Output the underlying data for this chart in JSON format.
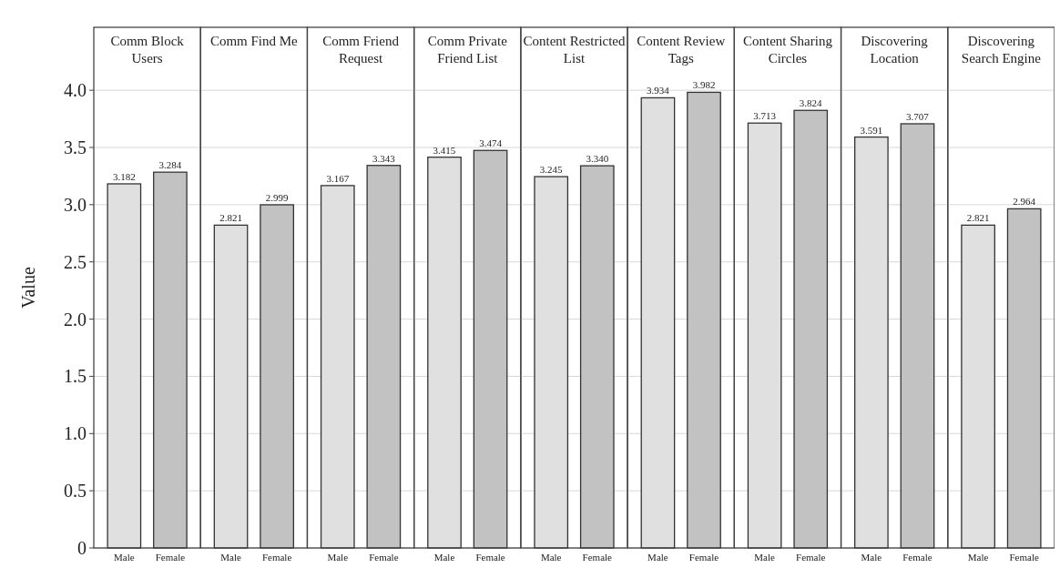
{
  "chart_data": [
    {
      "type": "bar",
      "title": "Comm Block Users",
      "ylabel": "Value",
      "categories": [
        "Male",
        "Female"
      ],
      "values": [
        3.182,
        3.284
      ],
      "value_labels": [
        "3.182",
        "3.284"
      ],
      "colors": [
        "#e0e0e0",
        "#c2c2c2"
      ],
      "ylim": [
        0,
        4.55
      ],
      "yticks": [
        0,
        {
          "value": 0.5,
          "label": "0.5"
        },
        {
          "value": 1,
          "label": "1.0"
        },
        {
          "value": 1.5,
          "label": "1.5"
        },
        {
          "value": 2,
          "label": "2.0"
        },
        {
          "value": 2.5,
          "label": "2.5"
        },
        {
          "value": 3,
          "label": "3.0"
        },
        {
          "value": 3.5,
          "label": "3.5"
        },
        {
          "value": 4,
          "label": "4.0"
        }
      ],
      "grid": "y"
    },
    {
      "type": "bar",
      "title": "Comm Find Me",
      "categories": [
        "Male",
        "Female"
      ],
      "values": [
        2.821,
        2.999
      ],
      "value_labels": [
        "2.821",
        "2.999"
      ],
      "colors": [
        "#e0e0e0",
        "#c2c2c2"
      ],
      "ylim": [
        0,
        4.55
      ],
      "yticks": [
        0,
        0.5,
        1,
        1.5,
        2,
        2.5,
        3,
        3.5,
        4
      ],
      "grid": "y",
      "tick_labels": "x"
    },
    {
      "type": "bar",
      "title": "Comm Friend Request",
      "categories": [
        "Male",
        "Female"
      ],
      "values": [
        3.167,
        3.343
      ],
      "value_labels": [
        "3.167",
        "3.343"
      ],
      "colors": [
        "#e0e0e0",
        "#c2c2c2"
      ],
      "ylim": [
        0,
        4.55
      ],
      "yticks": [
        0,
        0.5,
        1,
        1.5,
        2,
        2.5,
        3,
        3.5,
        4
      ],
      "grid": "y",
      "tick_labels": "x"
    },
    {
      "type": "bar",
      "title": "Comm Private Friend List",
      "categories": [
        "Male",
        "Female"
      ],
      "values": [
        3.415,
        3.474
      ],
      "value_labels": [
        "3.415",
        "3.474"
      ],
      "colors": [
        "#e0e0e0",
        "#c2c2c2"
      ],
      "ylim": [
        0,
        4.55
      ],
      "yticks": [
        0,
        0.5,
        1,
        1.5,
        2,
        2.5,
        3,
        3.5,
        4
      ],
      "grid": "y",
      "tick_labels": "x"
    },
    {
      "type": "bar",
      "title": "Content Restricted List",
      "categories": [
        "Male",
        "Female"
      ],
      "values": [
        3.245,
        3.34
      ],
      "value_labels": [
        "3.245",
        "3.340"
      ],
      "colors": [
        "#e0e0e0",
        "#c2c2c2"
      ],
      "ylim": [
        0,
        4.55
      ],
      "yticks": [
        0,
        0.5,
        1,
        1.5,
        2,
        2.5,
        3,
        3.5,
        4
      ],
      "grid": "y",
      "tick_labels": "x"
    },
    {
      "type": "bar",
      "title": "Content Review Tags",
      "categories": [
        "Male",
        "Female"
      ],
      "values": [
        3.934,
        3.982
      ],
      "value_labels": [
        "3.934",
        "3.982"
      ],
      "colors": [
        "#e0e0e0",
        "#c2c2c2"
      ],
      "ylim": [
        0,
        4.55
      ],
      "yticks": [
        0,
        0.5,
        1,
        1.5,
        2,
        2.5,
        3,
        3.5,
        4
      ],
      "grid": "y",
      "tick_labels": "x"
    },
    {
      "type": "bar",
      "title": "Content Sharing Circles",
      "categories": [
        "Male",
        "Female"
      ],
      "values": [
        3.713,
        3.824
      ],
      "value_labels": [
        "3.713",
        "3.824"
      ],
      "colors": [
        "#e0e0e0",
        "#c2c2c2"
      ],
      "ylim": [
        0,
        4.55
      ],
      "yticks": [
        0,
        0.5,
        1,
        1.5,
        2,
        2.5,
        3,
        3.5,
        4
      ],
      "grid": "y",
      "tick_labels": "x"
    },
    {
      "type": "bar",
      "title": "Discovering Location",
      "categories": [
        "Male",
        "Female"
      ],
      "values": [
        3.591,
        3.707
      ],
      "value_labels": [
        "3.591",
        "3.707"
      ],
      "colors": [
        "#e0e0e0",
        "#c2c2c2"
      ],
      "ylim": [
        0,
        4.55
      ],
      "yticks": [
        0,
        0.5,
        1,
        1.5,
        2,
        2.5,
        3,
        3.5,
        4
      ],
      "grid": "y",
      "tick_labels": "x"
    },
    {
      "type": "bar",
      "title": "Discovering Search Engine",
      "categories": [
        "Male",
        "Female"
      ],
      "values": [
        2.821,
        2.964
      ],
      "value_labels": [
        "2.821",
        "2.964"
      ],
      "colors": [
        "#e0e0e0",
        "#c2c2c2"
      ],
      "ylim": [
        0,
        4.55
      ],
      "yticks": [
        0,
        0.5,
        1,
        1.5,
        2,
        2.5,
        3,
        3.5,
        4
      ],
      "grid": "y",
      "tick_labels": "x"
    }
  ]
}
